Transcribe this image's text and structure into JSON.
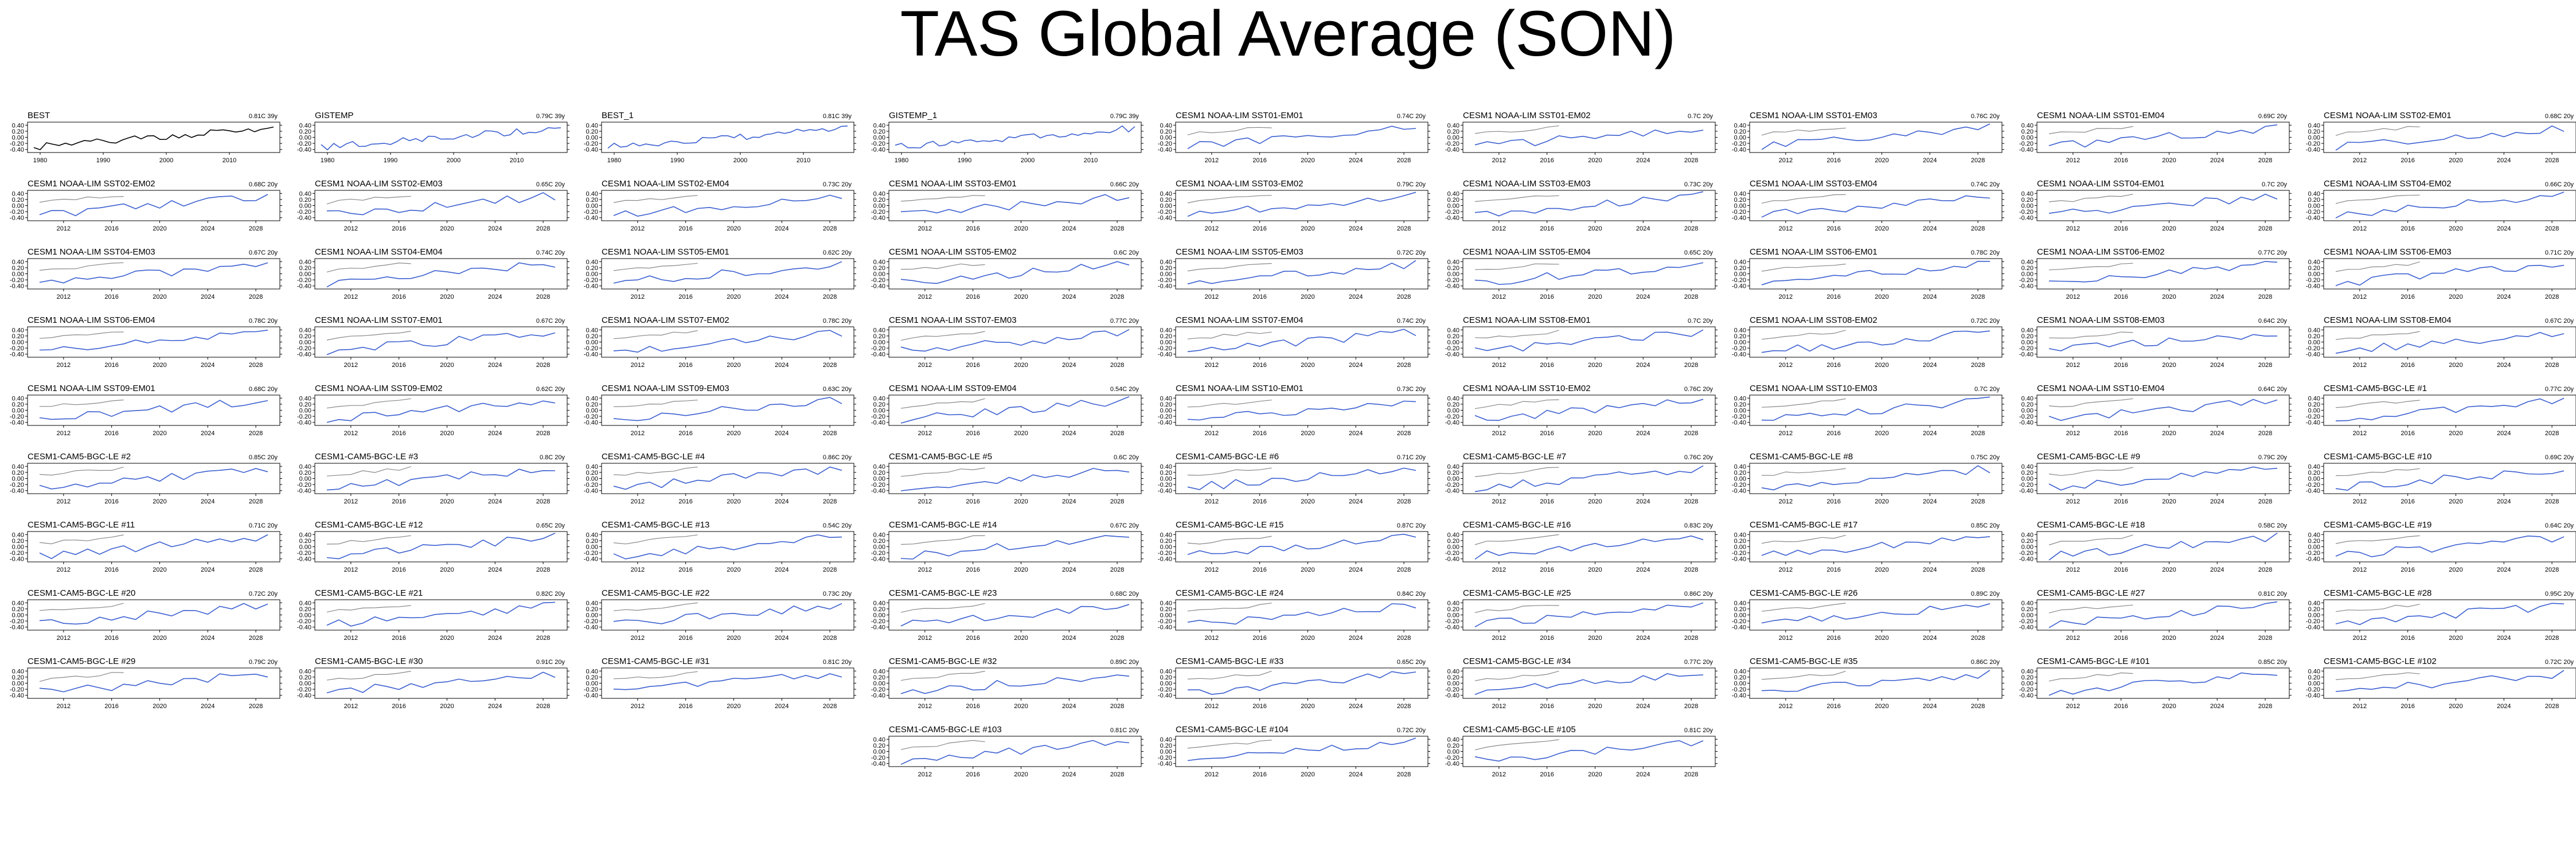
{
  "title": "TAS Global Average (SON)",
  "chart_data": {
    "type": "line",
    "ylim": [
      -0.5,
      0.5
    ],
    "yticks": [
      0.4,
      0.2,
      0.0,
      -0.2,
      -0.4
    ],
    "ytick_labels": [
      "0.40",
      "0.20",
      "0.00",
      "-0.20",
      "-0.40"
    ],
    "obs_xlim": [
      1978,
      2018
    ],
    "obs_xticks": [
      1980,
      1990,
      2000,
      2010
    ],
    "model_xlim": [
      2009,
      2030
    ],
    "model_xticks": [
      2012,
      2016,
      2020,
      2024,
      2028
    ],
    "colors": {
      "observed": "#000000",
      "model": "#3b5fd0",
      "obs_overlay": "#888888"
    },
    "panels": [
      {
        "name": "BEST",
        "trend": "0.81C 39y",
        "kind": "obs",
        "seed": 1
      },
      {
        "name": "GISTEMP",
        "trend": "0.79C 39y",
        "kind": "obs",
        "seed": 2
      },
      {
        "name": "BEST_1",
        "trend": "0.81C 39y",
        "kind": "obs",
        "seed": 3
      },
      {
        "name": "GISTEMP_1",
        "trend": "0.79C 39y",
        "kind": "obs",
        "seed": 4
      },
      {
        "name": "CESM1 NOAA-LIM SST01-EM01",
        "trend": "0.74C 20y",
        "kind": "model",
        "seed": 5
      },
      {
        "name": "CESM1 NOAA-LIM SST01-EM02",
        "trend": "0.7C 20y",
        "kind": "model",
        "seed": 6
      },
      {
        "name": "CESM1 NOAA-LIM SST01-EM03",
        "trend": "0.76C 20y",
        "kind": "model",
        "seed": 7
      },
      {
        "name": "CESM1 NOAA-LIM SST01-EM04",
        "trend": "0.69C 20y",
        "kind": "model",
        "seed": 8
      },
      {
        "name": "CESM1 NOAA-LIM SST02-EM01",
        "trend": "0.68C 20y",
        "kind": "model",
        "seed": 9
      },
      {
        "name": "CESM1 NOAA-LIM SST02-EM02",
        "trend": "0.68C 20y",
        "kind": "model",
        "seed": 10
      },
      {
        "name": "CESM1 NOAA-LIM SST02-EM03",
        "trend": "0.65C 20y",
        "kind": "model",
        "seed": 11
      },
      {
        "name": "CESM1 NOAA-LIM SST02-EM04",
        "trend": "0.73C 20y",
        "kind": "model",
        "seed": 12
      },
      {
        "name": "CESM1 NOAA-LIM SST03-EM01",
        "trend": "0.66C 20y",
        "kind": "model",
        "seed": 13
      },
      {
        "name": "CESM1 NOAA-LIM SST03-EM02",
        "trend": "0.79C 20y",
        "kind": "model",
        "seed": 14
      },
      {
        "name": "CESM1 NOAA-LIM SST03-EM03",
        "trend": "0.73C 20y",
        "kind": "model",
        "seed": 15
      },
      {
        "name": "CESM1 NOAA-LIM SST03-EM04",
        "trend": "0.74C 20y",
        "kind": "model",
        "seed": 16
      },
      {
        "name": "CESM1 NOAA-LIM SST04-EM01",
        "trend": "0.7C 20y",
        "kind": "model",
        "seed": 17
      },
      {
        "name": "CESM1 NOAA-LIM SST04-EM02",
        "trend": "0.66C 20y",
        "kind": "model",
        "seed": 18
      },
      {
        "name": "CESM1 NOAA-LIM SST04-EM03",
        "trend": "0.67C 20y",
        "kind": "model",
        "seed": 19
      },
      {
        "name": "CESM1 NOAA-LIM SST04-EM04",
        "trend": "0.74C 20y",
        "kind": "model",
        "seed": 20
      },
      {
        "name": "CESM1 NOAA-LIM SST05-EM01",
        "trend": "0.62C 20y",
        "kind": "model",
        "seed": 21
      },
      {
        "name": "CESM1 NOAA-LIM SST05-EM02",
        "trend": "0.6C 20y",
        "kind": "model",
        "seed": 22
      },
      {
        "name": "CESM1 NOAA-LIM SST05-EM03",
        "trend": "0.72C 20y",
        "kind": "model",
        "seed": 23
      },
      {
        "name": "CESM1 NOAA-LIM SST05-EM04",
        "trend": "0.65C 20y",
        "kind": "model",
        "seed": 24
      },
      {
        "name": "CESM1 NOAA-LIM SST06-EM01",
        "trend": "0.78C 20y",
        "kind": "model",
        "seed": 25
      },
      {
        "name": "CESM1 NOAA-LIM SST06-EM02",
        "trend": "0.77C 20y",
        "kind": "model",
        "seed": 26
      },
      {
        "name": "CESM1 NOAA-LIM SST06-EM03",
        "trend": "0.71C 20y",
        "kind": "model",
        "seed": 27
      },
      {
        "name": "CESM1 NOAA-LIM SST06-EM04",
        "trend": "0.78C 20y",
        "kind": "model",
        "seed": 28
      },
      {
        "name": "CESM1 NOAA-LIM SST07-EM01",
        "trend": "0.67C 20y",
        "kind": "model",
        "seed": 29
      },
      {
        "name": "CESM1 NOAA-LIM SST07-EM02",
        "trend": "0.78C 20y",
        "kind": "model",
        "seed": 30
      },
      {
        "name": "CESM1 NOAA-LIM SST07-EM03",
        "trend": "0.77C 20y",
        "kind": "model",
        "seed": 31
      },
      {
        "name": "CESM1 NOAA-LIM SST07-EM04",
        "trend": "0.74C 20y",
        "kind": "model",
        "seed": 32
      },
      {
        "name": "CESM1 NOAA-LIM SST08-EM01",
        "trend": "0.7C 20y",
        "kind": "model",
        "seed": 33
      },
      {
        "name": "CESM1 NOAA-LIM SST08-EM02",
        "trend": "0.72C 20y",
        "kind": "model",
        "seed": 34
      },
      {
        "name": "CESM1 NOAA-LIM SST08-EM03",
        "trend": "0.64C 20y",
        "kind": "model",
        "seed": 35
      },
      {
        "name": "CESM1 NOAA-LIM SST08-EM04",
        "trend": "0.67C 20y",
        "kind": "model",
        "seed": 36
      },
      {
        "name": "CESM1 NOAA-LIM SST09-EM01",
        "trend": "0.68C 20y",
        "kind": "model",
        "seed": 37
      },
      {
        "name": "CESM1 NOAA-LIM SST09-EM02",
        "trend": "0.62C 20y",
        "kind": "model",
        "seed": 38
      },
      {
        "name": "CESM1 NOAA-LIM SST09-EM03",
        "trend": "0.63C 20y",
        "kind": "model",
        "seed": 39
      },
      {
        "name": "CESM1 NOAA-LIM SST09-EM04",
        "trend": "0.54C 20y",
        "kind": "model",
        "seed": 40
      },
      {
        "name": "CESM1 NOAA-LIM SST10-EM01",
        "trend": "0.73C 20y",
        "kind": "model",
        "seed": 41
      },
      {
        "name": "CESM1 NOAA-LIM SST10-EM02",
        "trend": "0.76C 20y",
        "kind": "model",
        "seed": 42
      },
      {
        "name": "CESM1 NOAA-LIM SST10-EM03",
        "trend": "0.7C 20y",
        "kind": "model",
        "seed": 43
      },
      {
        "name": "CESM1 NOAA-LIM SST10-EM04",
        "trend": "0.64C 20y",
        "kind": "model",
        "seed": 44
      },
      {
        "name": "CESM1-CAM5-BGC-LE #1",
        "trend": "0.77C 20y",
        "kind": "model",
        "seed": 45
      },
      {
        "name": "CESM1-CAM5-BGC-LE #2",
        "trend": "0.85C 20y",
        "kind": "model",
        "seed": 46
      },
      {
        "name": "CESM1-CAM5-BGC-LE #3",
        "trend": "0.8C 20y",
        "kind": "model",
        "seed": 47
      },
      {
        "name": "CESM1-CAM5-BGC-LE #4",
        "trend": "0.86C 20y",
        "kind": "model",
        "seed": 48
      },
      {
        "name": "CESM1-CAM5-BGC-LE #5",
        "trend": "0.6C 20y",
        "kind": "model",
        "seed": 49
      },
      {
        "name": "CESM1-CAM5-BGC-LE #6",
        "trend": "0.71C 20y",
        "kind": "model",
        "seed": 50
      },
      {
        "name": "CESM1-CAM5-BGC-LE #7",
        "trend": "0.76C 20y",
        "kind": "model",
        "seed": 51
      },
      {
        "name": "CESM1-CAM5-BGC-LE #8",
        "trend": "0.75C 20y",
        "kind": "model",
        "seed": 52
      },
      {
        "name": "CESM1-CAM5-BGC-LE #9",
        "trend": "0.79C 20y",
        "kind": "model",
        "seed": 53
      },
      {
        "name": "CESM1-CAM5-BGC-LE #10",
        "trend": "0.69C 20y",
        "kind": "model",
        "seed": 54
      },
      {
        "name": "CESM1-CAM5-BGC-LE #11",
        "trend": "0.71C 20y",
        "kind": "model",
        "seed": 55
      },
      {
        "name": "CESM1-CAM5-BGC-LE #12",
        "trend": "0.65C 20y",
        "kind": "model",
        "seed": 56
      },
      {
        "name": "CESM1-CAM5-BGC-LE #13",
        "trend": "0.54C 20y",
        "kind": "model",
        "seed": 57
      },
      {
        "name": "CESM1-CAM5-BGC-LE #14",
        "trend": "0.67C 20y",
        "kind": "model",
        "seed": 58
      },
      {
        "name": "CESM1-CAM5-BGC-LE #15",
        "trend": "0.87C 20y",
        "kind": "model",
        "seed": 59
      },
      {
        "name": "CESM1-CAM5-BGC-LE #16",
        "trend": "0.83C 20y",
        "kind": "model",
        "seed": 60
      },
      {
        "name": "CESM1-CAM5-BGC-LE #17",
        "trend": "0.85C 20y",
        "kind": "model",
        "seed": 61
      },
      {
        "name": "CESM1-CAM5-BGC-LE #18",
        "trend": "0.58C 20y",
        "kind": "model",
        "seed": 62
      },
      {
        "name": "CESM1-CAM5-BGC-LE #19",
        "trend": "0.64C 20y",
        "kind": "model",
        "seed": 63
      },
      {
        "name": "CESM1-CAM5-BGC-LE #20",
        "trend": "0.72C 20y",
        "kind": "model",
        "seed": 64
      },
      {
        "name": "CESM1-CAM5-BGC-LE #21",
        "trend": "0.82C 20y",
        "kind": "model",
        "seed": 65
      },
      {
        "name": "CESM1-CAM5-BGC-LE #22",
        "trend": "0.73C 20y",
        "kind": "model",
        "seed": 66
      },
      {
        "name": "CESM1-CAM5-BGC-LE #23",
        "trend": "0.68C 20y",
        "kind": "model",
        "seed": 67
      },
      {
        "name": "CESM1-CAM5-BGC-LE #24",
        "trend": "0.84C 20y",
        "kind": "model",
        "seed": 68
      },
      {
        "name": "CESM1-CAM5-BGC-LE #25",
        "trend": "0.86C 20y",
        "kind": "model",
        "seed": 69
      },
      {
        "name": "CESM1-CAM5-BGC-LE #26",
        "trend": "0.89C 20y",
        "kind": "model",
        "seed": 70
      },
      {
        "name": "CESM1-CAM5-BGC-LE #27",
        "trend": "0.81C 20y",
        "kind": "model",
        "seed": 71
      },
      {
        "name": "CESM1-CAM5-BGC-LE #28",
        "trend": "0.95C 20y",
        "kind": "model",
        "seed": 72
      },
      {
        "name": "CESM1-CAM5-BGC-LE #29",
        "trend": "0.79C 20y",
        "kind": "model",
        "seed": 73
      },
      {
        "name": "CESM1-CAM5-BGC-LE #30",
        "trend": "0.91C 20y",
        "kind": "model",
        "seed": 74
      },
      {
        "name": "CESM1-CAM5-BGC-LE #31",
        "trend": "0.81C 20y",
        "kind": "model",
        "seed": 75
      },
      {
        "name": "CESM1-CAM5-BGC-LE #32",
        "trend": "0.89C 20y",
        "kind": "model",
        "seed": 76
      },
      {
        "name": "CESM1-CAM5-BGC-LE #33",
        "trend": "0.65C 20y",
        "kind": "model",
        "seed": 77
      },
      {
        "name": "CESM1-CAM5-BGC-LE #34",
        "trend": "0.77C 20y",
        "kind": "model",
        "seed": 78
      },
      {
        "name": "CESM1-CAM5-BGC-LE #35",
        "trend": "0.86C 20y",
        "kind": "model",
        "seed": 79
      },
      {
        "name": "CESM1-CAM5-BGC-LE #101",
        "trend": "0.85C 20y",
        "kind": "model",
        "seed": 80
      },
      {
        "name": "CESM1-CAM5-BGC-LE #102",
        "trend": "0.72C 20y",
        "kind": "model",
        "seed": 81
      },
      {
        "name": "CESM1-CAM5-BGC-LE #103",
        "trend": "0.81C 20y",
        "kind": "model",
        "seed": 82
      },
      {
        "name": "CESM1-CAM5-BGC-LE #104",
        "trend": "0.72C 20y",
        "kind": "model",
        "seed": 83
      },
      {
        "name": "CESM1-CAM5-BGC-LE #105",
        "trend": "0.81C 20y",
        "kind": "model",
        "seed": 84
      }
    ]
  }
}
